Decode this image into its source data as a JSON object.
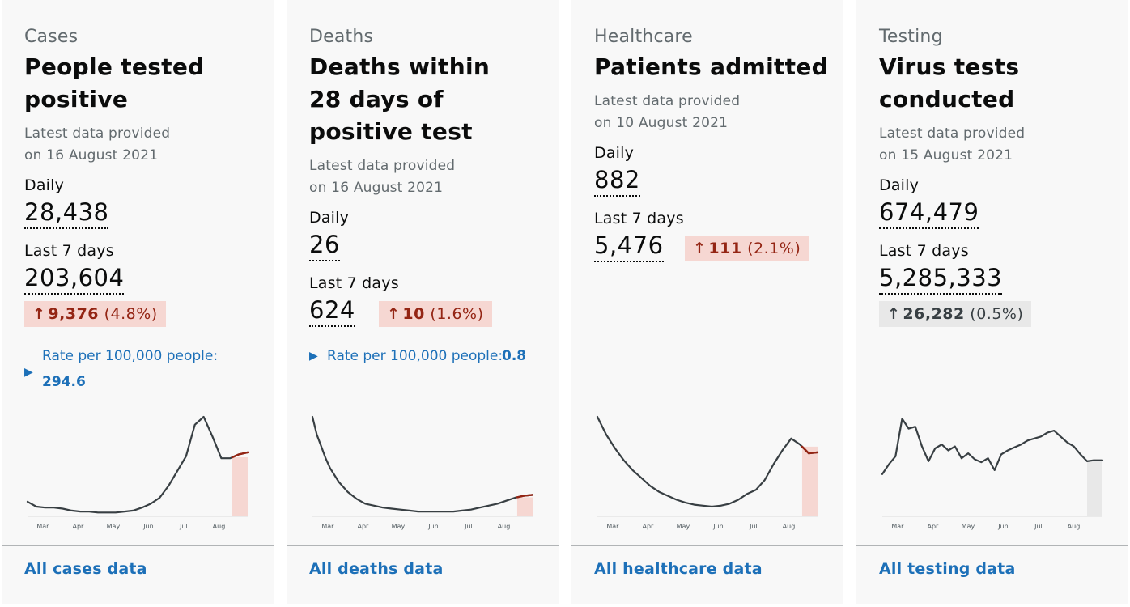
{
  "cards": [
    {
      "caption": "Cases",
      "heading": "People tested positive",
      "meta_line1": "Latest data provided",
      "meta_line2": "on 16 August 2021",
      "daily_label": "Daily",
      "daily_value": "28,438",
      "week_label": "Last 7 days",
      "week_value": "203,604",
      "change_value": "9,376",
      "change_pct": "(4.8%)",
      "change_direction": "up",
      "rate_label": "Rate per 100,000 people:",
      "rate_value": "294.6",
      "footer_link": "All cases data",
      "chart_x_ticks": [
        "Mar",
        "Apr",
        "May",
        "Jun",
        "Jul",
        "Aug"
      ]
    },
    {
      "caption": "Deaths",
      "heading": "Deaths within 28 days of positive test",
      "meta_line1": "Latest data provided",
      "meta_line2": "on 16 August 2021",
      "daily_label": "Daily",
      "daily_value": "26",
      "week_label": "Last 7 days",
      "week_value": "624",
      "change_value": "10",
      "change_pct": "(1.6%)",
      "change_direction": "up",
      "rate_label": "Rate per 100,000 people:",
      "rate_value": "0.8",
      "footer_link": "All deaths data",
      "chart_x_ticks": [
        "Mar",
        "Apr",
        "May",
        "Jun",
        "Jul",
        "Aug"
      ]
    },
    {
      "caption": "Healthcare",
      "heading": "Patients admitted",
      "meta_line1": "Latest data provided",
      "meta_line2": "on 10 August 2021",
      "daily_label": "Daily",
      "daily_value": "882",
      "week_label": "Last 7 days",
      "week_value": "5,476",
      "change_value": "111",
      "change_pct": "(2.1%)",
      "change_direction": "up",
      "footer_link": "All healthcare data",
      "chart_x_ticks": [
        "Mar",
        "Apr",
        "May",
        "Jun",
        "Jul",
        "Aug"
      ]
    },
    {
      "caption": "Testing",
      "heading": "Virus tests conducted",
      "meta_line1": "Latest data provided",
      "meta_line2": "on 15 August 2021",
      "daily_label": "Daily",
      "daily_value": "674,479",
      "week_label": "Last 7 days",
      "week_value": "5,285,333",
      "change_value": "26,282",
      "change_pct": "(0.5%)",
      "change_direction": "neutral",
      "footer_link": "All testing data",
      "chart_x_ticks": [
        "Mar",
        "Apr",
        "May",
        "Jun",
        "Jul",
        "Aug"
      ]
    }
  ],
  "colors": {
    "line": "#383f43",
    "highlight_line_up": "#942514",
    "highlight_fill_up": "#f6d7d2",
    "highlight_fill_neutral": "#e8e8e8",
    "link": "#1d70b8"
  },
  "chart_data": [
    {
      "type": "line",
      "x": [
        0,
        4,
        8,
        12,
        16,
        20,
        24,
        28,
        32,
        36,
        40,
        44,
        48,
        52,
        56,
        60,
        64,
        68,
        72,
        76,
        80,
        84,
        88,
        92,
        96,
        100
      ],
      "series": [
        {
          "values": [
            14,
            9,
            8,
            8,
            7,
            5,
            4,
            4,
            3,
            3,
            3,
            4,
            5,
            8,
            12,
            18,
            30,
            45,
            60,
            92,
            100,
            80,
            58,
            58,
            62,
            64
          ]
        }
      ],
      "highlight_from": 93
    },
    {
      "type": "line",
      "x": [
        0,
        2,
        4,
        6,
        8,
        12,
        16,
        20,
        24,
        28,
        32,
        36,
        40,
        44,
        48,
        52,
        56,
        60,
        64,
        68,
        72,
        76,
        80,
        84,
        88,
        92,
        96,
        100
      ],
      "series": [
        {
          "values": [
            100,
            82,
            70,
            58,
            48,
            34,
            24,
            17,
            12,
            10,
            8,
            7,
            6,
            5,
            4,
            4,
            4,
            4,
            4,
            5,
            6,
            8,
            10,
            12,
            15,
            18,
            20,
            21
          ]
        }
      ],
      "highlight_from": 93
    },
    {
      "type": "line",
      "x": [
        0,
        4,
        8,
        12,
        16,
        20,
        24,
        28,
        32,
        36,
        40,
        44,
        48,
        52,
        56,
        60,
        64,
        68,
        72,
        76,
        80,
        84,
        88,
        92,
        96,
        100
      ],
      "series": [
        {
          "values": [
            100,
            82,
            68,
            56,
            46,
            38,
            30,
            24,
            20,
            16,
            13,
            11,
            10,
            9,
            10,
            12,
            16,
            22,
            26,
            36,
            52,
            66,
            78,
            72,
            63,
            64
          ]
        }
      ],
      "highlight_from": 93
    },
    {
      "type": "line",
      "x": [
        0,
        3,
        6,
        9,
        12,
        15,
        18,
        21,
        24,
        27,
        30,
        33,
        36,
        39,
        42,
        45,
        48,
        51,
        54,
        57,
        60,
        63,
        66,
        69,
        72,
        75,
        78,
        81,
        84,
        87,
        90,
        93,
        96,
        100
      ],
      "series": [
        {
          "values": [
            42,
            52,
            60,
            98,
            88,
            90,
            70,
            55,
            68,
            72,
            66,
            70,
            58,
            63,
            57,
            54,
            58,
            46,
            62,
            66,
            69,
            72,
            76,
            78,
            80,
            84,
            86,
            80,
            74,
            70,
            62,
            55,
            56,
            56
          ]
        }
      ],
      "highlight_from": 93
    }
  ]
}
